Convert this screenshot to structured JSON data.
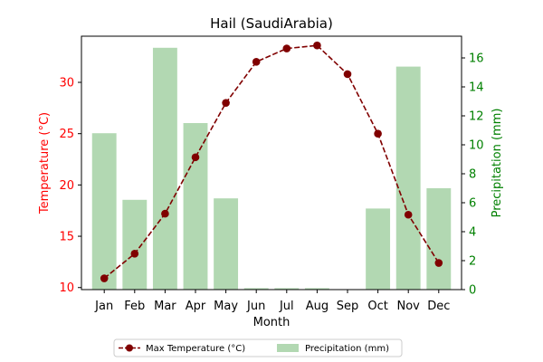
{
  "chart_data": {
    "type": "bar",
    "title": "Hail (SaudiArabia)",
    "xlabel": "Month",
    "ylabel_left": "Temperature (°C)",
    "ylabel_right": "Precipitation (mm)",
    "categories": [
      "Jan",
      "Feb",
      "Mar",
      "Apr",
      "May",
      "Jun",
      "Jul",
      "Aug",
      "Sep",
      "Oct",
      "Nov",
      "Dec"
    ],
    "series": [
      {
        "name": "Max Temperature (°C)",
        "type": "line",
        "axis": "left",
        "color": "#800000",
        "values": [
          10.9,
          13.3,
          17.2,
          22.7,
          28.0,
          32.0,
          33.3,
          33.6,
          30.8,
          25.0,
          17.1,
          12.4
        ]
      },
      {
        "name": "Precipitation (mm)",
        "type": "bar",
        "axis": "right",
        "color": "#b2d8b2",
        "values": [
          10.8,
          6.2,
          16.7,
          11.5,
          6.3,
          0.1,
          0.1,
          0.1,
          0.0,
          5.6,
          15.4,
          7.0
        ]
      }
    ],
    "ylim_left": [
      9.8,
      34.5
    ],
    "ylim_right": [
      0,
      17.5
    ],
    "yticks_left": [
      "10",
      "15",
      "20",
      "25",
      "30"
    ],
    "yticks_right": [
      "0",
      "2",
      "4",
      "6",
      "8",
      "10",
      "12",
      "14",
      "16"
    ],
    "left_axis_color": "#ff0000",
    "right_axis_color": "#008000",
    "grid": false,
    "legend_position": "bottom-center"
  }
}
